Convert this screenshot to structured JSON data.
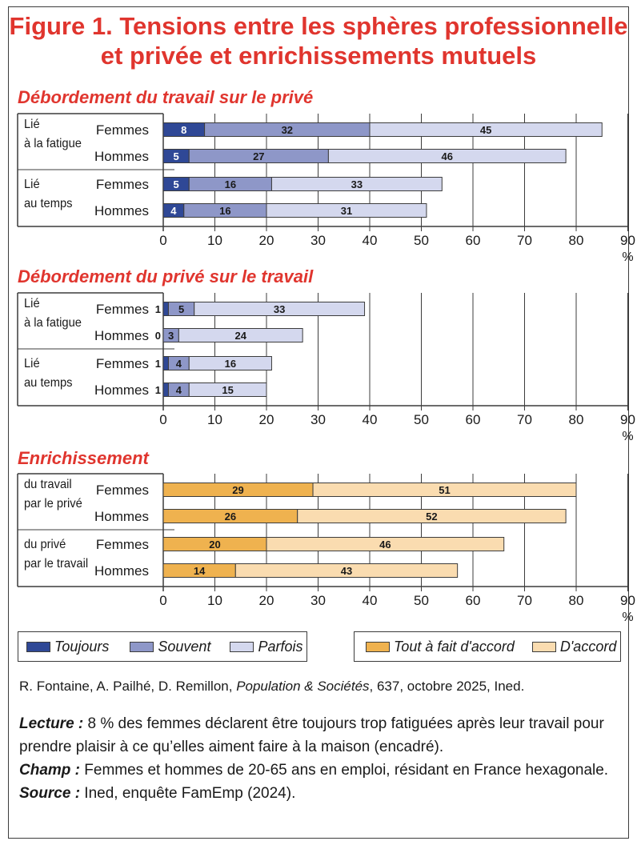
{
  "title": {
    "line1": "Figure 1. Tensions entre les sphères professionnelle",
    "line2": "et privée et enrichissements mutuels"
  },
  "colors": {
    "accent": "#e0352e",
    "toujours": "#2f4896",
    "souvent": "#8e97c8",
    "parfois": "#d4d8ee",
    "tout_a_fait": "#efb24f",
    "d_accord": "#fadcb0"
  },
  "chart_data": [
    {
      "type": "bar",
      "orientation": "horizontal",
      "stacked": true,
      "title": "Débordement du travail sur le privé",
      "groups": [
        {
          "label": [
            "Lié",
            "à la fatigue"
          ],
          "rows": [
            "Femmes",
            "Hommes"
          ]
        },
        {
          "label": [
            "Lié",
            "au temps"
          ],
          "rows": [
            "Femmes",
            "Hommes"
          ]
        }
      ],
      "categories": [
        "Lié à la fatigue – Femmes",
        "Lié à la fatigue – Hommes",
        "Lié au temps – Femmes",
        "Lié au temps – Hommes"
      ],
      "series": [
        {
          "name": "Toujours",
          "values": [
            8,
            5,
            5,
            4
          ]
        },
        {
          "name": "Souvent",
          "values": [
            32,
            27,
            16,
            16
          ]
        },
        {
          "name": "Parfois",
          "values": [
            45,
            46,
            33,
            31
          ]
        }
      ],
      "xlim": [
        0,
        90
      ],
      "xticks": [
        "0",
        "10",
        "20",
        "30",
        "40",
        "50",
        "60",
        "70",
        "80",
        "90"
      ],
      "xunit": "%",
      "labels_outside_first": false
    },
    {
      "type": "bar",
      "orientation": "horizontal",
      "stacked": true,
      "title": "Débordement du privé sur le travail",
      "groups": [
        {
          "label": [
            "Lié",
            "à la fatigue"
          ],
          "rows": [
            "Femmes",
            "Hommes"
          ]
        },
        {
          "label": [
            "Lié",
            "au temps"
          ],
          "rows": [
            "Femmes",
            "Hommes"
          ]
        }
      ],
      "categories": [
        "Lié à la fatigue – Femmes",
        "Lié à la fatigue – Hommes",
        "Lié au temps – Femmes",
        "Lié au temps – Hommes"
      ],
      "series": [
        {
          "name": "Toujours",
          "values": [
            1,
            0,
            1,
            1
          ]
        },
        {
          "name": "Souvent",
          "values": [
            5,
            3,
            4,
            4
          ]
        },
        {
          "name": "Parfois",
          "values": [
            33,
            24,
            16,
            15
          ]
        }
      ],
      "xlim": [
        0,
        90
      ],
      "xticks": [
        "0",
        "10",
        "20",
        "30",
        "40",
        "50",
        "60",
        "70",
        "80",
        "90"
      ],
      "xunit": "%",
      "labels_outside_first": true
    },
    {
      "type": "bar",
      "orientation": "horizontal",
      "stacked": true,
      "title": "Enrichissement",
      "groups": [
        {
          "label": [
            "du travail",
            "par le privé"
          ],
          "rows": [
            "Femmes",
            "Hommes"
          ]
        },
        {
          "label": [
            "du privé",
            "par le travail"
          ],
          "rows": [
            "Femmes",
            "Hommes"
          ]
        }
      ],
      "categories": [
        "du travail par le privé – Femmes",
        "du travail par le privé – Hommes",
        "du privé par le travail – Femmes",
        "du privé par le travail – Hommes"
      ],
      "series": [
        {
          "name": "Tout à fait d'accord",
          "values": [
            29,
            26,
            20,
            14
          ]
        },
        {
          "name": "D'accord",
          "values": [
            51,
            52,
            46,
            43
          ]
        }
      ],
      "xlim": [
        0,
        90
      ],
      "xticks": [
        "0",
        "10",
        "20",
        "30",
        "40",
        "50",
        "60",
        "70",
        "80",
        "90"
      ],
      "xunit": "%",
      "labels_outside_first": false
    }
  ],
  "legend": {
    "left": [
      "Toujours",
      "Souvent",
      "Parfois"
    ],
    "right": [
      "Tout à fait d'accord",
      "D'accord"
    ]
  },
  "source_line": {
    "authors": "R. Fontaine, A. Pailhé, D. Remillon, ",
    "journal": "Population & Sociétés",
    "rest": ", 637, octobre 2025, Ined."
  },
  "notes": {
    "lecture_label": "Lecture :",
    "lecture_text": " 8 % des femmes déclarent être toujours trop fatiguées après leur travail pour prendre plaisir à ce qu’elles aiment faire à la maison (encadré).",
    "champ_label": "Champ :",
    "champ_text": " Femmes et hommes de 20-65 ans en emploi, résidant en France hexagonale.",
    "source_label": "Source :",
    "source_text": " Ined, enquête FamEmp (2024)."
  }
}
